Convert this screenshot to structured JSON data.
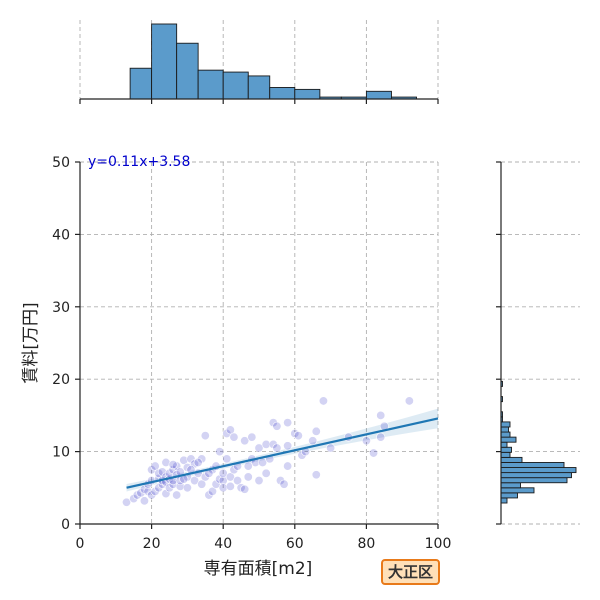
{
  "chart_data": {
    "type": "scatter",
    "title": "",
    "xlabel": "専有面積[m2]",
    "ylabel": "賃料[万円]",
    "xlim": [
      0,
      100
    ],
    "ylim": [
      0,
      50
    ],
    "x_ticks": [
      "0",
      "20",
      "40",
      "60",
      "80",
      "100"
    ],
    "y_ticks": [
      "0",
      "10",
      "20",
      "30",
      "40",
      "50"
    ],
    "grid": true,
    "regression": {
      "slope": 0.11,
      "intercept": 3.58,
      "x_range": [
        13,
        100
      ],
      "label": "y=0.11x+3.58"
    },
    "points": [
      [
        13,
        3.0
      ],
      [
        15,
        3.5
      ],
      [
        16,
        4.0
      ],
      [
        17,
        4.3
      ],
      [
        18,
        3.2
      ],
      [
        18,
        4.8
      ],
      [
        19,
        4.5
      ],
      [
        19,
        5.5
      ],
      [
        20,
        4.0
      ],
      [
        20,
        6.0
      ],
      [
        20,
        7.5
      ],
      [
        21,
        4.5
      ],
      [
        21,
        8.0
      ],
      [
        22,
        5.0
      ],
      [
        22,
        6.3
      ],
      [
        22,
        7.0
      ],
      [
        23,
        5.5
      ],
      [
        23,
        6.0
      ],
      [
        23,
        7.2
      ],
      [
        24,
        4.2
      ],
      [
        24,
        5.8
      ],
      [
        24,
        6.5
      ],
      [
        24,
        8.5
      ],
      [
        25,
        5.0
      ],
      [
        25,
        6.2
      ],
      [
        25,
        7.0
      ],
      [
        26,
        5.5
      ],
      [
        26,
        6.0
      ],
      [
        26,
        7.5
      ],
      [
        27,
        4.0
      ],
      [
        27,
        6.8
      ],
      [
        27,
        8.0
      ],
      [
        28,
        5.2
      ],
      [
        28,
        6.0
      ],
      [
        28,
        7.2
      ],
      [
        29,
        8.8
      ],
      [
        30,
        5.0
      ],
      [
        30,
        6.5
      ],
      [
        30,
        7.8
      ],
      [
        31,
        9.0
      ],
      [
        32,
        6.0
      ],
      [
        32,
        8.3
      ],
      [
        33,
        7.0
      ],
      [
        34,
        5.5
      ],
      [
        34,
        9.0
      ],
      [
        35,
        12.2
      ],
      [
        35,
        6.5
      ],
      [
        36,
        4.0
      ],
      [
        37,
        4.5
      ],
      [
        37,
        7.5
      ],
      [
        38,
        5.5
      ],
      [
        38,
        8.0
      ],
      [
        39,
        6.2
      ],
      [
        39,
        10.0
      ],
      [
        40,
        6.0
      ],
      [
        40,
        7.0
      ],
      [
        40,
        5.0
      ],
      [
        41,
        12.5
      ],
      [
        41,
        9.0
      ],
      [
        42,
        13.0
      ],
      [
        42,
        6.5
      ],
      [
        42,
        5.2
      ],
      [
        43,
        7.5
      ],
      [
        44,
        8.0
      ],
      [
        44,
        6.0
      ],
      [
        45,
        5.0
      ],
      [
        46,
        4.8
      ],
      [
        46,
        11.5
      ],
      [
        47,
        6.5
      ],
      [
        48,
        12.0
      ],
      [
        48,
        9.0
      ],
      [
        49,
        8.5
      ],
      [
        50,
        6.0
      ],
      [
        50,
        10.5
      ],
      [
        51,
        8.5
      ],
      [
        52,
        7.0
      ],
      [
        52,
        11.0
      ],
      [
        53,
        9.0
      ],
      [
        54,
        11.0
      ],
      [
        54,
        14.0
      ],
      [
        55,
        10.5
      ],
      [
        55,
        13.5
      ],
      [
        56,
        6.0
      ],
      [
        57,
        5.5
      ],
      [
        58,
        8.0
      ],
      [
        58,
        10.8
      ],
      [
        60,
        12.5
      ],
      [
        61,
        12.2
      ],
      [
        62,
        9.5
      ],
      [
        63,
        10.0
      ],
      [
        65,
        11.5
      ],
      [
        66,
        6.8
      ],
      [
        66,
        12.8
      ],
      [
        68,
        17.0
      ],
      [
        70,
        10.5
      ],
      [
        75,
        12.0
      ],
      [
        80,
        11.5
      ],
      [
        82,
        9.8
      ],
      [
        84,
        12.0
      ],
      [
        84,
        15.0
      ],
      [
        85,
        13.5
      ],
      [
        92,
        17.0
      ],
      [
        47,
        8.0
      ],
      [
        36,
        7.0
      ],
      [
        33,
        8.5
      ],
      [
        29,
        6.2
      ],
      [
        31,
        7.5
      ],
      [
        26,
        8.2
      ],
      [
        43,
        12.0
      ],
      [
        58,
        14.0
      ]
    ],
    "top_histogram": {
      "bins": [
        [
          14,
          20
        ],
        [
          20,
          27
        ],
        [
          27,
          33
        ],
        [
          33,
          40
        ],
        [
          40,
          47
        ],
        [
          47,
          53
        ],
        [
          53,
          60
        ],
        [
          60,
          67
        ],
        [
          67,
          73
        ],
        [
          73,
          80
        ],
        [
          80,
          87
        ],
        [
          87,
          94
        ]
      ],
      "counts": [
        16,
        39,
        29,
        15,
        14,
        12,
        6,
        5,
        1,
        1,
        4,
        1
      ]
    },
    "right_histogram": {
      "bins": [
        [
          2.9,
          3.6
        ],
        [
          3.6,
          4.3
        ],
        [
          4.3,
          5.0
        ],
        [
          5.0,
          5.7
        ],
        [
          5.7,
          6.4
        ],
        [
          6.4,
          7.1
        ],
        [
          7.1,
          7.8
        ],
        [
          7.8,
          8.5
        ],
        [
          8.5,
          9.2
        ],
        [
          9.2,
          9.9
        ],
        [
          9.9,
          10.6
        ],
        [
          10.6,
          11.3
        ],
        [
          11.3,
          12.0
        ],
        [
          12.0,
          12.7
        ],
        [
          12.7,
          13.4
        ],
        [
          13.4,
          14.1
        ],
        [
          14.1,
          14.8
        ],
        [
          14.8,
          15.5
        ],
        [
          15.5,
          16.2
        ],
        [
          16.2,
          16.9
        ],
        [
          16.9,
          17.6
        ],
        [
          17.6,
          18.3
        ],
        [
          18.3,
          19.0
        ],
        [
          19.0,
          19.7
        ]
      ],
      "counts": [
        4,
        11,
        22,
        13,
        44,
        47,
        50,
        42,
        14,
        6,
        7,
        4,
        10,
        6,
        5,
        6,
        1,
        1,
        0,
        0,
        1,
        0,
        0,
        1
      ]
    }
  },
  "badge": {
    "label": "大正区"
  }
}
